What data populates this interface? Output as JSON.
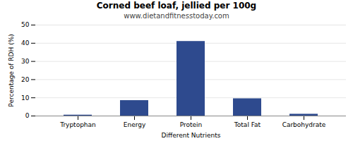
{
  "chart_data": {
    "type": "bar",
    "title": "Corned beef loaf, jellied per 100g",
    "subtitle": "www.dietandfitnesstoday.com",
    "xlabel": "Different Nutrients",
    "ylabel": "Percentage of RDH (%)",
    "categories": [
      "Tryptophan",
      "Energy",
      "Protein",
      "Total Fat",
      "Carbohydrate"
    ],
    "values": [
      0.5,
      8.5,
      41.0,
      9.5,
      1.0
    ],
    "color": "#2e4a8e",
    "ylim": [
      0,
      50
    ],
    "yticks": [
      0,
      10,
      20,
      30,
      40,
      50
    ],
    "grid": true
  }
}
